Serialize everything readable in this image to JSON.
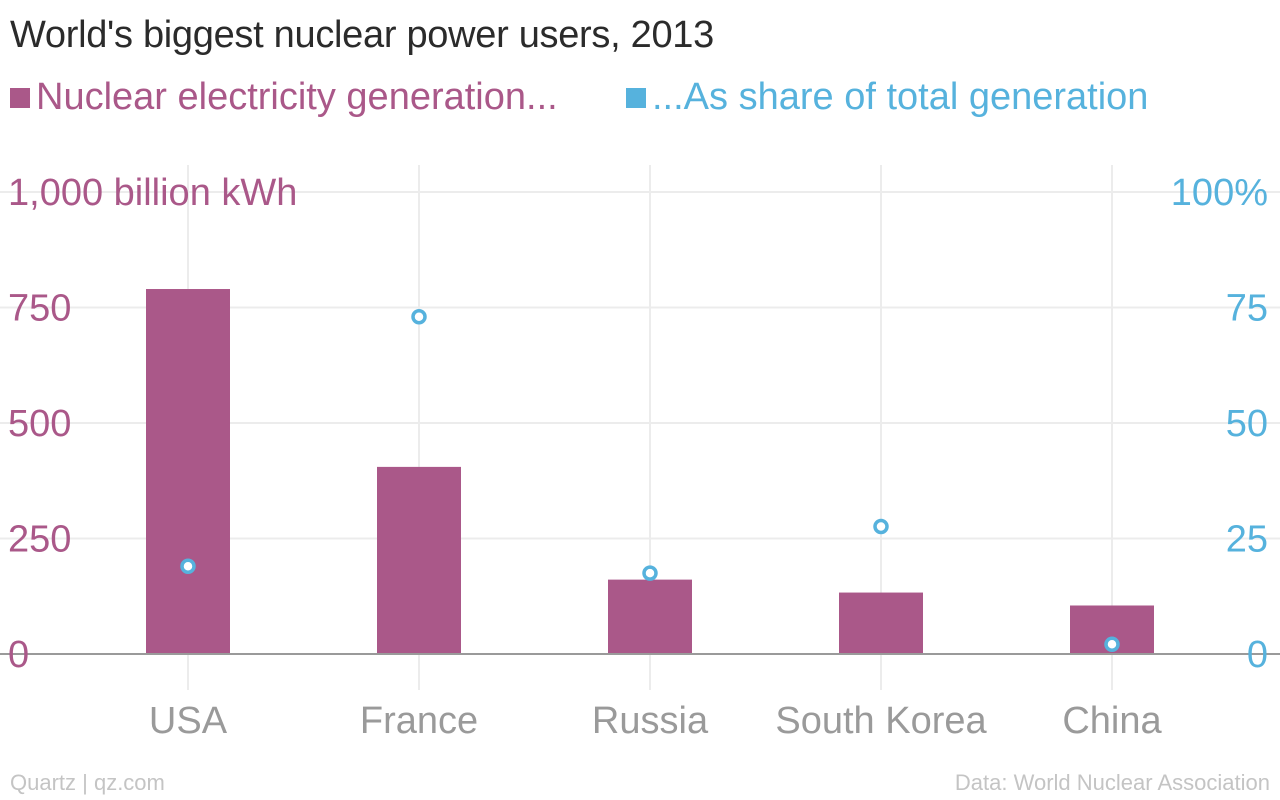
{
  "colors": {
    "nuclear": "#aa5889",
    "share": "#56b2dd",
    "grid": "#ececec",
    "axis": "#9a9a9a",
    "category_text": "#9a9a9a",
    "footer_text": "#c4c4c4",
    "title_text": "#2b2b2b"
  },
  "footer": {
    "source": "Quartz | qz.com",
    "credit": "Data: World Nuclear Association"
  },
  "chart_data": {
    "type": "bar",
    "title": "World's biggest nuclear power users, 2013",
    "categories": [
      "USA",
      "France",
      "Russia",
      "South Korea",
      "China"
    ],
    "series": [
      {
        "name": "Nuclear electricity generation...",
        "type": "bar",
        "axis": "left",
        "values": [
          790,
          405,
          161,
          133,
          105
        ]
      },
      {
        "name": "...As share of total generation",
        "type": "scatter",
        "axis": "right",
        "values": [
          19,
          73,
          17.5,
          27.6,
          2.1
        ]
      }
    ],
    "y_left": {
      "ylim": [
        0,
        1000
      ],
      "ticks": [
        0,
        250,
        500,
        750,
        1000
      ],
      "tick_labels": [
        "0",
        "250",
        "500",
        "750",
        "1,000 billion kWh"
      ]
    },
    "y_right": {
      "ylim": [
        0,
        100
      ],
      "ticks": [
        0,
        25,
        50,
        75,
        100
      ],
      "tick_labels": [
        "0",
        "25",
        "50",
        "75",
        "100%"
      ]
    },
    "grid": true,
    "legend_position": "top-left"
  }
}
